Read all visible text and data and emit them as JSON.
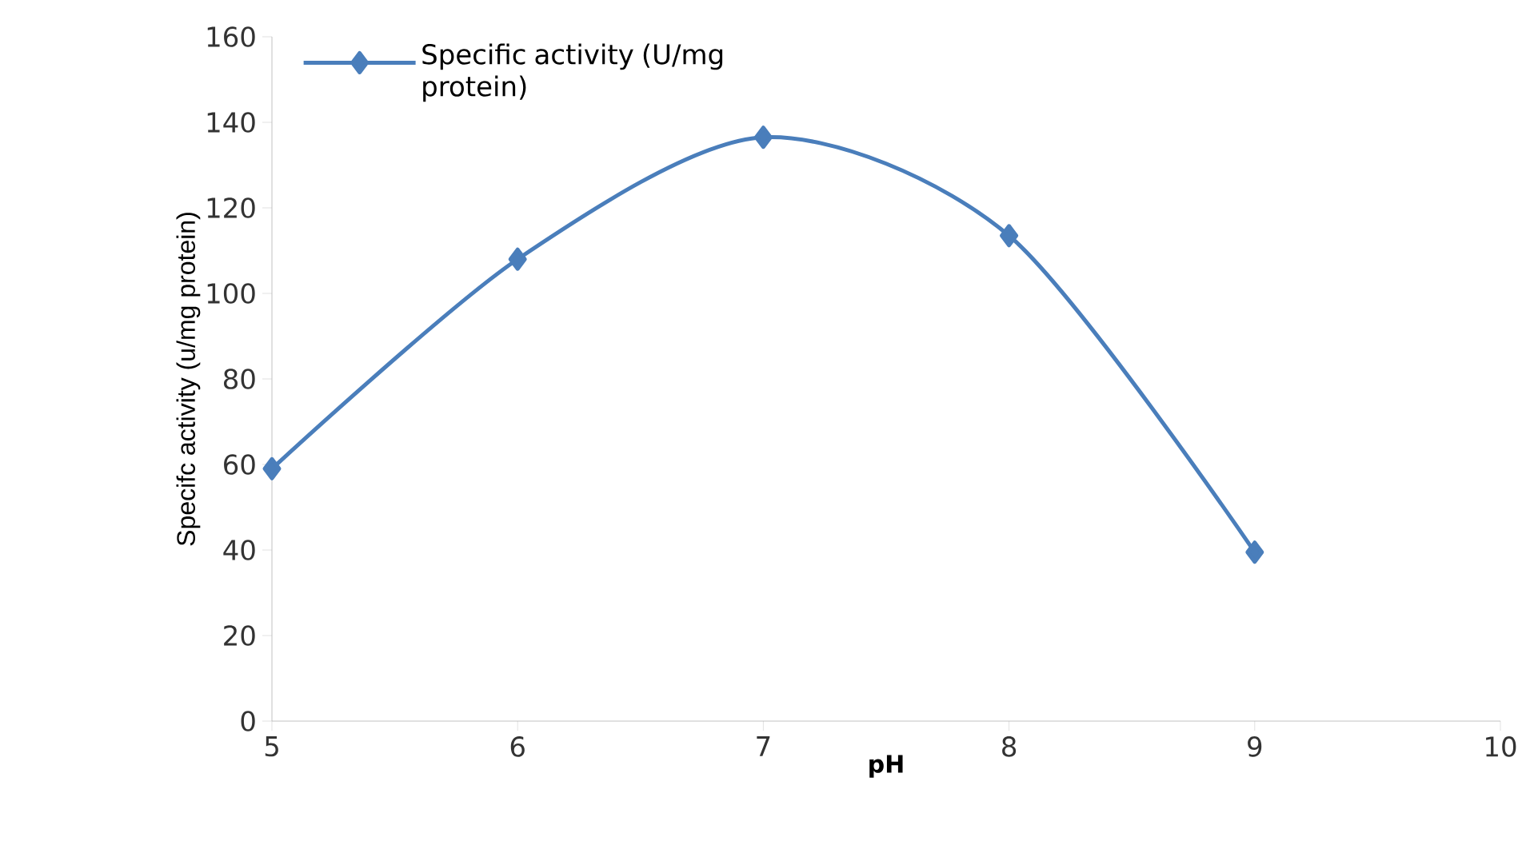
{
  "chart_data": {
    "type": "line",
    "xlabel": "pH",
    "ylabel": "Specifc activity (u/mg protein)",
    "x": [
      5,
      6,
      7,
      8,
      9
    ],
    "series": [
      {
        "name": "Specific activity (U/mg protein)",
        "color": "#4a7ebb",
        "values": [
          59,
          108,
          136.5,
          113.5,
          39.5
        ]
      }
    ],
    "xlim": [
      5,
      10
    ],
    "xticks": [
      5,
      6,
      7,
      8,
      9,
      10
    ],
    "ylim": [
      0,
      160
    ],
    "yticks": [
      0,
      20,
      40,
      60,
      80,
      100,
      120,
      140,
      160
    ],
    "grid": false,
    "legend": "top left",
    "marker": "diamond",
    "line_style": "solid"
  }
}
